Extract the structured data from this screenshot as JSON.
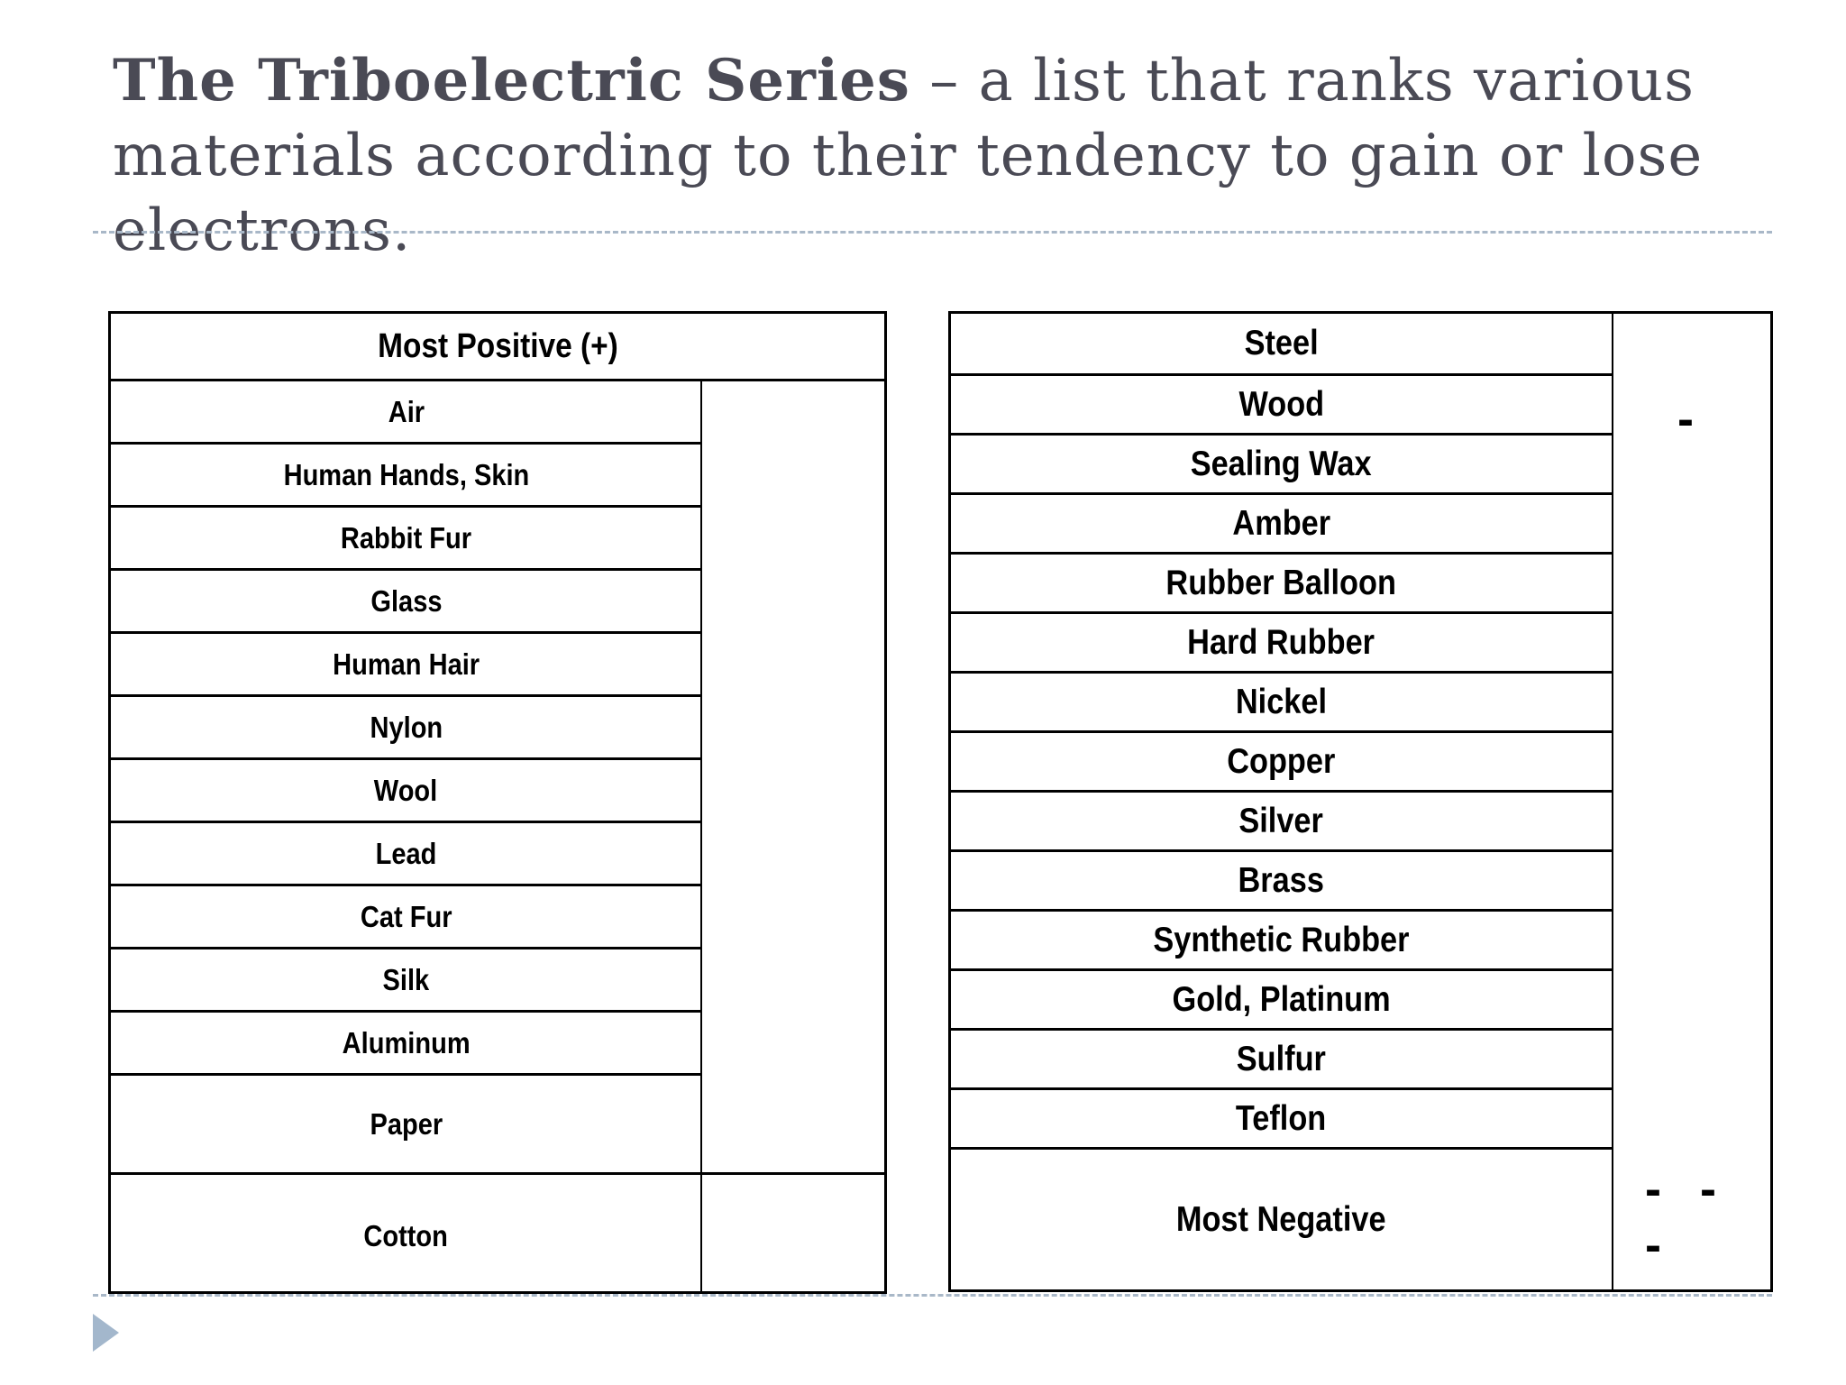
{
  "title": {
    "bold": "The Triboelectric Series",
    "rest": " – a list that ranks various materials according to their tendency to gain or lose electrons."
  },
  "left_table": {
    "header": "Most Positive (+)",
    "rows": [
      "Air",
      "Human Hands, Skin",
      "Rabbit Fur",
      "Glass",
      "Human Hair",
      "Nylon",
      "Wool",
      "Lead",
      "Cat Fur",
      "Silk",
      "Aluminum",
      "Paper",
      "Cotton"
    ]
  },
  "right_table": {
    "rows": [
      "Steel",
      "Wood",
      "Sealing Wax",
      "Amber",
      "Rubber Balloon",
      "Hard Rubber",
      "Nickel",
      "Copper",
      "Silver",
      "Brass",
      "Synthetic Rubber",
      "Gold, Platinum",
      "Sulfur",
      "Teflon"
    ],
    "footer": "Most Negative",
    "sign_top": "-",
    "sign_bottom": "- - -"
  },
  "colors": {
    "title": "#4a4a55",
    "accent": "#a3b7cc"
  },
  "icons": {
    "bullet": "triangle-right-icon"
  }
}
